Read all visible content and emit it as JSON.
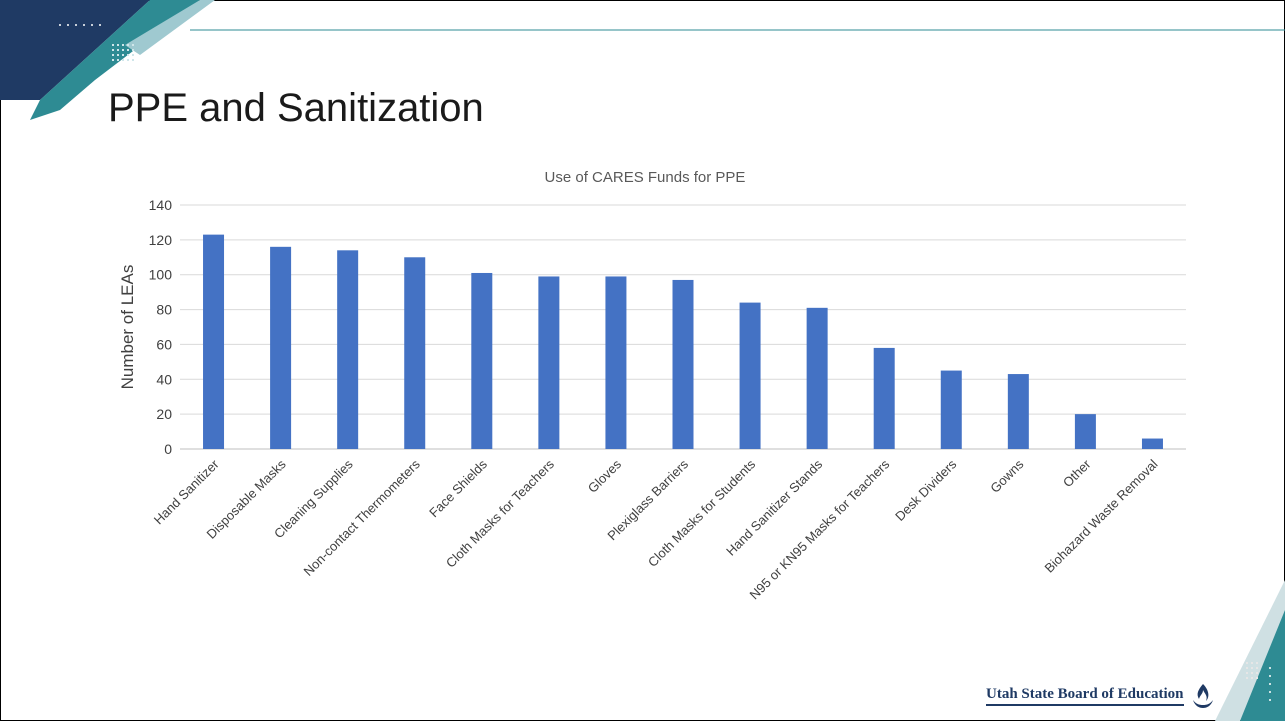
{
  "slide": {
    "title": "PPE and Sanitization",
    "organization": "Utah State Board of Education"
  },
  "colors": {
    "bar": "#4472C4",
    "accent_dark": "#1f3a64",
    "accent_teal": "#2e8b93",
    "grid": "#d9d9d9"
  },
  "chart_data": {
    "type": "bar",
    "title": "Use of CARES Funds for PPE",
    "xlabel": "",
    "ylabel": "Number of LEAs",
    "ylim": [
      0,
      140
    ],
    "yticks": [
      0,
      20,
      40,
      60,
      80,
      100,
      120,
      140
    ],
    "grid": true,
    "legend": "none",
    "categories": [
      "Hand Sanitizer",
      "Disposable Masks",
      "Cleaning Supplies",
      "Non-contact Thermometers",
      "Face Shields",
      "Cloth Masks for Teachers",
      "Gloves",
      "Plexiglass Barriers",
      "Cloth Masks for Students",
      "Hand Sanitizer Stands",
      "N95 or KN95 Masks for Teachers",
      "Desk Dividers",
      "Gowns",
      "Other",
      "Biohazard Waste Removal"
    ],
    "values": [
      123,
      116,
      114,
      110,
      101,
      99,
      99,
      97,
      84,
      81,
      58,
      45,
      43,
      20,
      6
    ]
  }
}
